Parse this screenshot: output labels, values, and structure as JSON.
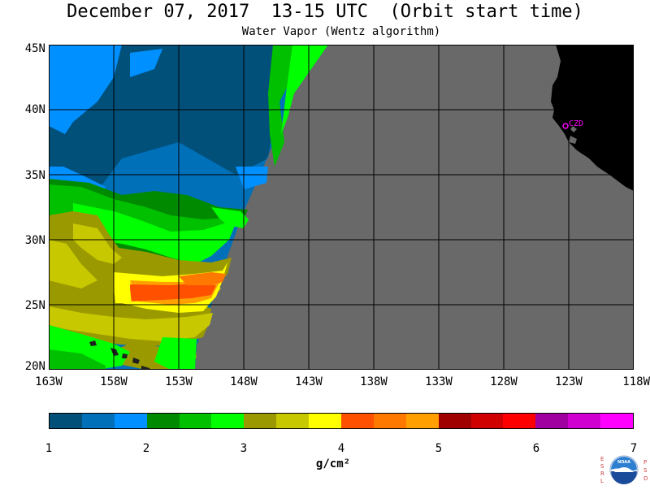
{
  "title": "December 07, 2017  13-15 UTC  (Orbit start time)",
  "subtitle": "Water Vapor (Wentz algorithm)",
  "lat_labels": [
    "45N",
    "40N",
    "35N",
    "30N",
    "25N",
    "20N"
  ],
  "lon_labels": [
    "163W",
    "158W",
    "153W",
    "148W",
    "143W",
    "138W",
    "133W",
    "128W",
    "123W",
    "118W"
  ],
  "station": {
    "label": "CZD"
  },
  "colorbar": {
    "ticks": [
      "1",
      "2",
      "3",
      "4",
      "5",
      "6",
      "7"
    ],
    "unit": "g/cm²",
    "colors": [
      "#00507a",
      "#0070b8",
      "#0090ff",
      "#008a00",
      "#00c000",
      "#00ff00",
      "#9a9a00",
      "#c8c800",
      "#ffff00",
      "#ff5000",
      "#ff7800",
      "#ffa000",
      "#a00000",
      "#d00000",
      "#ff0000",
      "#a000a0",
      "#d000d0",
      "#ff00ff"
    ]
  },
  "logo": {
    "text": "NOAA",
    "left_letters": "ESRL",
    "right_letters": "PSD"
  }
}
